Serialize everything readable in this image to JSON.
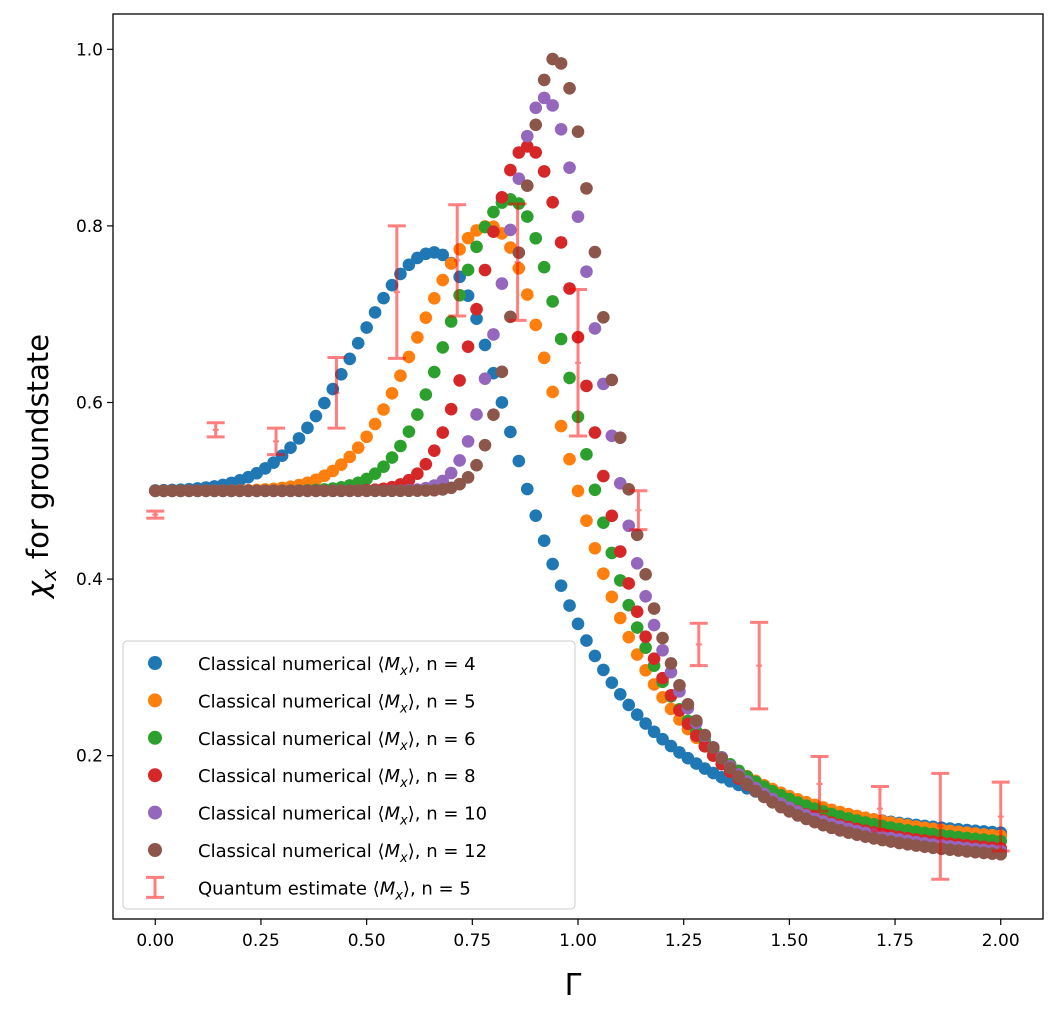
{
  "chart_data": {
    "type": "scatter",
    "title": "",
    "xlabel": "Γ",
    "ylabel": "for groundstate",
    "ylabel_symbol": "χ",
    "ylabel_subscript": "x",
    "xlim": [
      -0.1,
      2.1
    ],
    "ylim": [
      0.015,
      1.04
    ],
    "x_ticks": [
      0.0,
      0.25,
      0.5,
      0.75,
      1.0,
      1.25,
      1.5,
      1.75,
      2.0
    ],
    "x_tick_labels": [
      "0.00",
      "0.25",
      "0.50",
      "0.75",
      "1.00",
      "1.25",
      "1.50",
      "1.75",
      "2.00"
    ],
    "y_ticks": [
      0.2,
      0.4,
      0.6,
      0.8,
      1.0
    ],
    "y_tick_labels": [
      "0.2",
      "0.4",
      "0.6",
      "0.8",
      "1.0"
    ],
    "grid": false,
    "legend_position": "lower-left",
    "x_grid": {
      "start": 0.0,
      "end": 2.0,
      "count": 101
    },
    "series": [
      {
        "name": "Classical numerical",
        "n_label": "n = 4",
        "color": "#1f77b4",
        "peak_x": 0.66,
        "peak_y": 0.77,
        "width_left": 0.26,
        "width_right": 0.27,
        "tail_y": 0.09
      },
      {
        "name": "Classical numerical",
        "n_label": "n = 5",
        "color": "#ff7f0e",
        "peak_x": 0.79,
        "peak_y": 0.8,
        "width_left": 0.23,
        "width_right": 0.245,
        "tail_y": 0.085
      },
      {
        "name": "Classical numerical",
        "n_label": "n = 6",
        "color": "#2ca02c",
        "peak_x": 0.84,
        "peak_y": 0.83,
        "width_left": 0.19,
        "width_right": 0.225,
        "tail_y": 0.08
      },
      {
        "name": "Classical numerical",
        "n_label": "n = 8",
        "color": "#d62728",
        "peak_x": 0.88,
        "peak_y": 0.89,
        "width_left": 0.15,
        "width_right": 0.195,
        "tail_y": 0.075
      },
      {
        "name": "Classical numerical",
        "n_label": "n = 10",
        "color": "#9467bd",
        "peak_x": 0.92,
        "peak_y": 0.945,
        "width_left": 0.125,
        "width_right": 0.18,
        "tail_y": 0.072
      },
      {
        "name": "Classical numerical",
        "n_label": "n = 12",
        "color": "#8c564b",
        "peak_x": 0.945,
        "peak_y": 0.99,
        "width_left": 0.11,
        "width_right": 0.165,
        "tail_y": 0.07
      }
    ],
    "errorbar_series": {
      "name": "Quantum estimate",
      "n_label": "n = 5",
      "color": "#ff0000",
      "alpha": 0.5,
      "points": [
        {
          "x": 0.0,
          "y": 0.473,
          "err": 0.004
        },
        {
          "x": 0.1429,
          "y": 0.569,
          "err": 0.008
        },
        {
          "x": 0.2857,
          "y": 0.556,
          "err": 0.015
        },
        {
          "x": 0.4286,
          "y": 0.611,
          "err": 0.04
        },
        {
          "x": 0.5714,
          "y": 0.725,
          "err": 0.075
        },
        {
          "x": 0.7143,
          "y": 0.761,
          "err": 0.063
        },
        {
          "x": 0.8571,
          "y": 0.759,
          "err": 0.066
        },
        {
          "x": 1.0,
          "y": 0.645,
          "err": 0.083
        },
        {
          "x": 1.1429,
          "y": 0.478,
          "err": 0.022
        },
        {
          "x": 1.2857,
          "y": 0.326,
          "err": 0.024
        },
        {
          "x": 1.4286,
          "y": 0.302,
          "err": 0.049
        },
        {
          "x": 1.5714,
          "y": 0.168,
          "err": 0.031
        },
        {
          "x": 1.7143,
          "y": 0.14,
          "err": 0.025
        },
        {
          "x": 1.8571,
          "y": 0.12,
          "err": 0.06
        },
        {
          "x": 2.0,
          "y": 0.131,
          "err": 0.039
        }
      ]
    },
    "legend_labels": {
      "mx_label": "⟨M_x⟩",
      "mx_open": "⟨",
      "mx_letter": "M",
      "mx_sub": "x",
      "mx_close": "⟩"
    }
  }
}
